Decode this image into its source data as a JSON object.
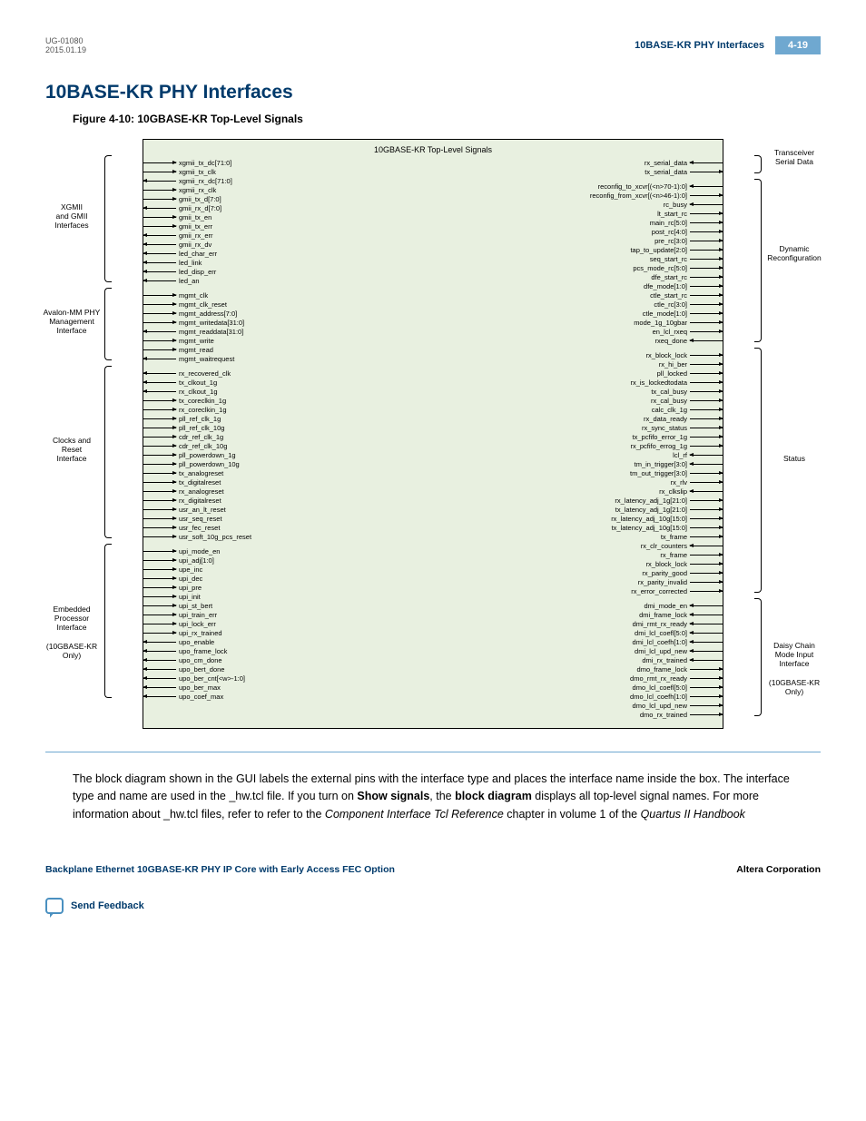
{
  "header": {
    "doc_id": "UG-01080",
    "date": "2015.01.19",
    "title": "10BASE-KR PHY Interfaces",
    "page": "4-19"
  },
  "h1": "10BASE-KR PHY Interfaces",
  "fig_caption": "Figure 4-10: 10GBASE-KR Top-Level Signals",
  "core_title": "10GBASE-KR Top-Level Signals",
  "left_groups": [
    {
      "label": "XGMII\nand GMII\nInterfaces",
      "signals": [
        {
          "n": "xgmii_tx_dc[71:0]",
          "d": "in"
        },
        {
          "n": "xgmii_tx_clk",
          "d": "in"
        },
        {
          "n": "xgmii_rx_dc[71:0]",
          "d": "out"
        },
        {
          "n": "xgmii_rx_clk",
          "d": "in"
        },
        {
          "n": "gmii_tx_d[7:0]",
          "d": "in"
        },
        {
          "n": "gmii_rx_d[7:0]",
          "d": "out"
        },
        {
          "n": "gmii_tx_en",
          "d": "in"
        },
        {
          "n": "gmii_tx_err",
          "d": "in"
        },
        {
          "n": "gmii_rx_err",
          "d": "out"
        },
        {
          "n": "gmii_rx_dv",
          "d": "out"
        },
        {
          "n": "led_char_err",
          "d": "out"
        },
        {
          "n": "led_link",
          "d": "out"
        },
        {
          "n": "led_disp_err",
          "d": "out"
        },
        {
          "n": "led_an",
          "d": "out"
        }
      ]
    },
    {
      "label": "Avalon-MM PHY\nManagement\nInterface",
      "signals": [
        {
          "n": "mgmt_clk",
          "d": "in"
        },
        {
          "n": "mgmt_clk_reset",
          "d": "in"
        },
        {
          "n": "mgmt_address[7:0]",
          "d": "in"
        },
        {
          "n": "mgmt_writedata[31:0]",
          "d": "in"
        },
        {
          "n": "mgmt_readdata[31:0]",
          "d": "out"
        },
        {
          "n": "mgmt_write",
          "d": "in"
        },
        {
          "n": "mgmt_read",
          "d": "in"
        },
        {
          "n": "mgmt_waitrequest",
          "d": "out"
        }
      ]
    },
    {
      "label": "Clocks and\nReset\nInterface",
      "signals": [
        {
          "n": "rx_recovered_clk",
          "d": "out"
        },
        {
          "n": "tx_clkout_1g",
          "d": "out"
        },
        {
          "n": "rx_clkout_1g",
          "d": "out"
        },
        {
          "n": "tx_coreclkin_1g",
          "d": "in"
        },
        {
          "n": "rx_coreclkin_1g",
          "d": "in"
        },
        {
          "n": "pll_ref_clk_1g",
          "d": "in"
        },
        {
          "n": "pll_ref_clk_10g",
          "d": "in"
        },
        {
          "n": "cdr_ref_clk_1g",
          "d": "in"
        },
        {
          "n": "cdr_ref_clk_10g",
          "d": "in"
        },
        {
          "n": "pll_powerdown_1g",
          "d": "in"
        },
        {
          "n": "pll_powerdown_10g",
          "d": "in"
        },
        {
          "n": "tx_analogreset",
          "d": "in"
        },
        {
          "n": "tx_digitalreset",
          "d": "in"
        },
        {
          "n": "rx_analogreset",
          "d": "in"
        },
        {
          "n": "rx_digitalreset",
          "d": "in"
        },
        {
          "n": "usr_an_lt_reset",
          "d": "in"
        },
        {
          "n": "usr_seq_reset",
          "d": "in"
        },
        {
          "n": "usr_fec_reset",
          "d": "in"
        },
        {
          "n": "usr_soft_10g_pcs_reset",
          "d": "in"
        }
      ]
    },
    {
      "label": "Embedded\nProcessor\nInterface\n\n(10GBASE-KR\nOnly)",
      "signals": [
        {
          "n": "upi_mode_en",
          "d": "in"
        },
        {
          "n": "upi_adj[1:0]",
          "d": "in"
        },
        {
          "n": "upe_inc",
          "d": "in"
        },
        {
          "n": "upi_dec",
          "d": "in"
        },
        {
          "n": "upi_pre",
          "d": "in"
        },
        {
          "n": "upi_init",
          "d": "in"
        },
        {
          "n": "upi_st_bert",
          "d": "in"
        },
        {
          "n": "upi_train_err",
          "d": "in"
        },
        {
          "n": "upi_lock_err",
          "d": "in"
        },
        {
          "n": "upi_rx_trained",
          "d": "in"
        },
        {
          "n": "upo_enable",
          "d": "out"
        },
        {
          "n": "upo_frame_lock",
          "d": "out"
        },
        {
          "n": "upo_cm_done",
          "d": "out"
        },
        {
          "n": "upo_bert_done",
          "d": "out"
        },
        {
          "n": "upo_ber_cnt[<w>-1:0]",
          "d": "out"
        },
        {
          "n": "upo_ber_max",
          "d": "out"
        },
        {
          "n": "upo_coef_max",
          "d": "out"
        }
      ]
    }
  ],
  "right_groups": [
    {
      "label": "Transceiver\nSerial Data",
      "signals": [
        {
          "n": "rx_serial_data",
          "d": "in"
        },
        {
          "n": "tx_serial_data",
          "d": "out"
        }
      ]
    },
    {
      "label": "Dynamic\nReconfiguration",
      "signals": [
        {
          "n": "reconfig_to_xcvr[(<n>70-1):0]",
          "d": "in"
        },
        {
          "n": "reconfig_from_xcvr[(<n>46-1):0]",
          "d": "out"
        },
        {
          "n": "rc_busy",
          "d": "in"
        },
        {
          "n": "lt_start_rc",
          "d": "out"
        },
        {
          "n": "main_rc[5:0]",
          "d": "out"
        },
        {
          "n": "post_rc[4:0]",
          "d": "out"
        },
        {
          "n": "pre_rc[3:0]",
          "d": "out"
        },
        {
          "n": "tap_to_update[2:0]",
          "d": "out"
        },
        {
          "n": "seq_start_rc",
          "d": "out"
        },
        {
          "n": "pcs_mode_rc[5:0]",
          "d": "out"
        },
        {
          "n": "dfe_start_rc",
          "d": "out"
        },
        {
          "n": "dfe_mode[1:0]",
          "d": "out"
        },
        {
          "n": "ctle_start_rc",
          "d": "out"
        },
        {
          "n": "ctle_rc[3:0]",
          "d": "out"
        },
        {
          "n": "ctle_mode[1:0]",
          "d": "out"
        },
        {
          "n": "mode_1g_10gbar",
          "d": "out"
        },
        {
          "n": "en_lcl_rxeq",
          "d": "out"
        },
        {
          "n": "rxeq_done",
          "d": "in"
        }
      ]
    },
    {
      "label": "Status",
      "signals": [
        {
          "n": "rx_block_lock",
          "d": "out"
        },
        {
          "n": "rx_hi_ber",
          "d": "out"
        },
        {
          "n": "pll_locked",
          "d": "out"
        },
        {
          "n": "rx_is_lockedtodata",
          "d": "out"
        },
        {
          "n": "tx_cal_busy",
          "d": "out"
        },
        {
          "n": "rx_cal_busy",
          "d": "out"
        },
        {
          "n": "calc_clk_1g",
          "d": "out"
        },
        {
          "n": "rx_data_ready",
          "d": "out"
        },
        {
          "n": "rx_sync_status",
          "d": "out"
        },
        {
          "n": "tx_pcfifo_error_1g",
          "d": "out"
        },
        {
          "n": "rx_pcfifo_errog_1g",
          "d": "out"
        },
        {
          "n": "lcl_rf",
          "d": "in"
        },
        {
          "n": "tm_in_trigger[3:0]",
          "d": "in"
        },
        {
          "n": "tm_out_trigger[3:0]",
          "d": "out"
        },
        {
          "n": "rx_rlv",
          "d": "out"
        },
        {
          "n": "rx_clkslip",
          "d": "in"
        },
        {
          "n": "rx_latency_adj_1g[21:0]",
          "d": "out"
        },
        {
          "n": "tx_latency_adj_1g[21:0]",
          "d": "out"
        },
        {
          "n": "rx_latency_adj_10g[15:0]",
          "d": "out"
        },
        {
          "n": "tx_latency_adj_10g[15:0]",
          "d": "out"
        },
        {
          "n": "tx_frame",
          "d": "out"
        },
        {
          "n": "rx_clr_counters",
          "d": "in"
        },
        {
          "n": "rx_frame",
          "d": "out"
        },
        {
          "n": "rx_block_lock",
          "d": "out"
        },
        {
          "n": "rx_parity_good",
          "d": "out"
        },
        {
          "n": "rx_parity_invalid",
          "d": "out"
        },
        {
          "n": "rx_error_corrected",
          "d": "out"
        }
      ]
    },
    {
      "label": "Daisy Chain\nMode Input\nInterface\n\n(10GBASE-KR\nOnly)",
      "signals": [
        {
          "n": "dmi_mode_en",
          "d": "in"
        },
        {
          "n": "dmi_frame_lock",
          "d": "in"
        },
        {
          "n": "dmi_rmt_rx_ready",
          "d": "in"
        },
        {
          "n": "dmi_lcl_coefl[5:0]",
          "d": "in"
        },
        {
          "n": "dmi_lcl_coefh[1:0]",
          "d": "in"
        },
        {
          "n": "dmi_lcl_upd_new",
          "d": "in"
        },
        {
          "n": "dmi_rx_trained",
          "d": "in"
        },
        {
          "n": "dmo_frame_lock",
          "d": "out"
        },
        {
          "n": "dmo_rmt_rx_ready",
          "d": "out"
        },
        {
          "n": "dmo_lcl_coefl[5:0]",
          "d": "out"
        },
        {
          "n": "dmo_lcl_coefh[1:0]",
          "d": "out"
        },
        {
          "n": "dmo_lcl_upd_new",
          "d": "out"
        },
        {
          "n": "dmo_rx_trained",
          "d": "out"
        }
      ]
    }
  ],
  "body_text": "The block diagram shown in the GUI labels the external pins with the interface type and places the interface name inside the box. The interface type and name are used in the _hw.tcl file. If you turn on <b>Show signals</b>, the <b>block diagram</b> displays all top-level signal names. For more information about _hw.tcl files, refer to refer to the <i>Component Interface Tcl Reference</i> chapter in volume 1 of the <i>Quartus II Handbook</i>",
  "footer": {
    "left": "Backplane Ethernet 10GBASE-KR PHY IP Core with Early Access FEC Option",
    "right": "Altera Corporation"
  },
  "feedback": "Send Feedback"
}
